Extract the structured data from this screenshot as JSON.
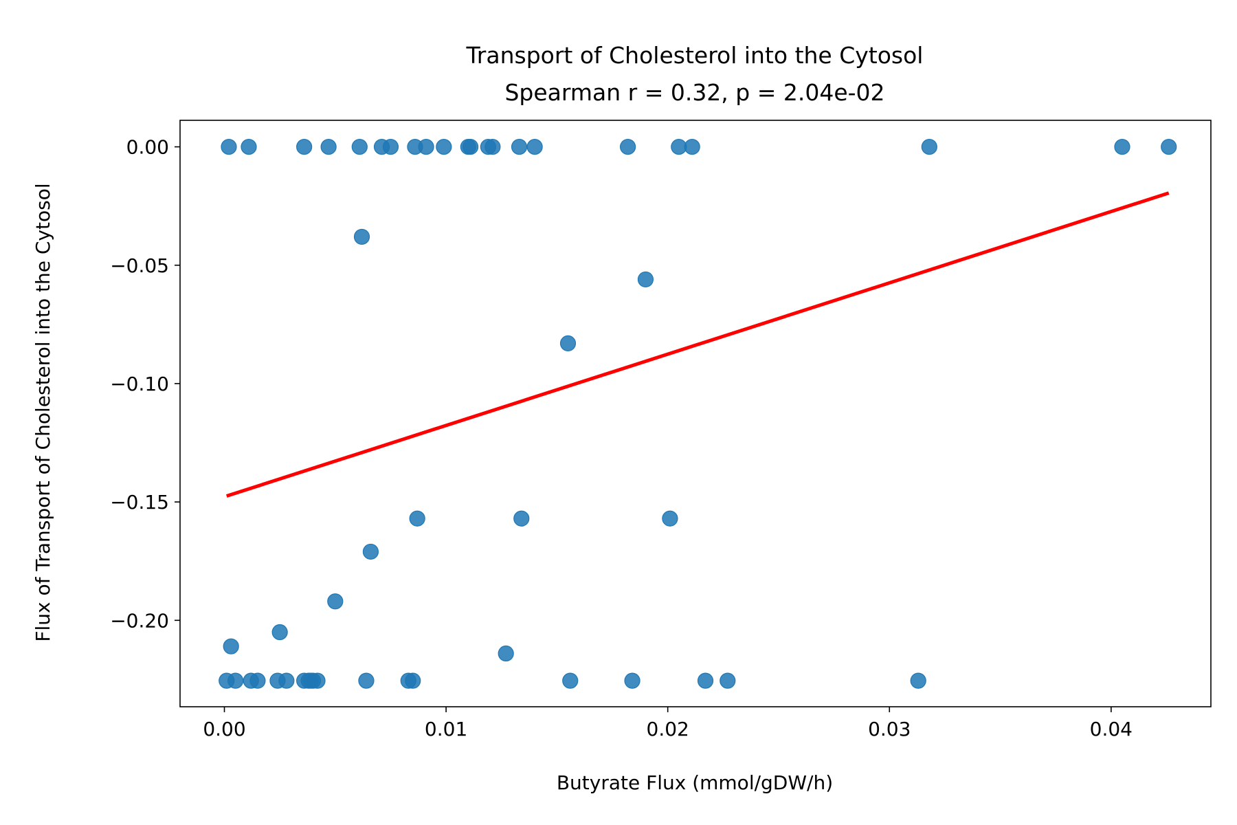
{
  "chart_data": {
    "type": "scatter",
    "title": "Transport of Cholesterol into the Cytosol",
    "subtitle": "Spearman r = 0.32, p = 2.04e-02",
    "xlabel": "Butyrate Flux (mmol/gDW/h)",
    "ylabel": "Flux of Transport of Cholesterol into the Cytosol",
    "xlim": [
      -0.002,
      0.0445
    ],
    "ylim": [
      -0.2365,
      0.0112
    ],
    "xticks": [
      0.0,
      0.01,
      0.02,
      0.03,
      0.04
    ],
    "xtick_labels": [
      "0.00",
      "0.01",
      "0.02",
      "0.03",
      "0.04"
    ],
    "yticks": [
      0.0,
      -0.05,
      -0.1,
      -0.15,
      -0.2
    ],
    "ytick_labels": [
      "0.00",
      "−0.05",
      "−0.10",
      "−0.15",
      "−0.20"
    ],
    "grid": false,
    "point_color": "#1f77b4",
    "line_color": "#ff0000",
    "points": [
      {
        "x": 0.0002,
        "y": 0.0
      },
      {
        "x": 0.0011,
        "y": 0.0
      },
      {
        "x": 0.0036,
        "y": 0.0
      },
      {
        "x": 0.0047,
        "y": 0.0
      },
      {
        "x": 0.0061,
        "y": 0.0
      },
      {
        "x": 0.0071,
        "y": 0.0
      },
      {
        "x": 0.0075,
        "y": 0.0
      },
      {
        "x": 0.0086,
        "y": 0.0
      },
      {
        "x": 0.0091,
        "y": 0.0
      },
      {
        "x": 0.0099,
        "y": 0.0
      },
      {
        "x": 0.011,
        "y": 0.0
      },
      {
        "x": 0.0111,
        "y": 0.0
      },
      {
        "x": 0.0119,
        "y": 0.0
      },
      {
        "x": 0.0121,
        "y": 0.0
      },
      {
        "x": 0.0133,
        "y": 0.0
      },
      {
        "x": 0.014,
        "y": 0.0
      },
      {
        "x": 0.0182,
        "y": 0.0
      },
      {
        "x": 0.0205,
        "y": 0.0
      },
      {
        "x": 0.0211,
        "y": 0.0
      },
      {
        "x": 0.0318,
        "y": 0.0
      },
      {
        "x": 0.0405,
        "y": 0.0
      },
      {
        "x": 0.0426,
        "y": 0.0
      },
      {
        "x": 0.0062,
        "y": -0.038
      },
      {
        "x": 0.019,
        "y": -0.056
      },
      {
        "x": 0.0155,
        "y": -0.083
      },
      {
        "x": 0.0087,
        "y": -0.157
      },
      {
        "x": 0.0134,
        "y": -0.157
      },
      {
        "x": 0.0201,
        "y": -0.157
      },
      {
        "x": 0.0066,
        "y": -0.171
      },
      {
        "x": 0.005,
        "y": -0.192
      },
      {
        "x": 0.0025,
        "y": -0.205
      },
      {
        "x": 0.0003,
        "y": -0.211
      },
      {
        "x": 0.0127,
        "y": -0.214
      },
      {
        "x": 0.0001,
        "y": -0.2255
      },
      {
        "x": 0.0005,
        "y": -0.2255
      },
      {
        "x": 0.0012,
        "y": -0.2255
      },
      {
        "x": 0.0015,
        "y": -0.2255
      },
      {
        "x": 0.0024,
        "y": -0.2255
      },
      {
        "x": 0.0028,
        "y": -0.2255
      },
      {
        "x": 0.0036,
        "y": -0.2255
      },
      {
        "x": 0.0038,
        "y": -0.2255
      },
      {
        "x": 0.0039,
        "y": -0.2255
      },
      {
        "x": 0.004,
        "y": -0.2255
      },
      {
        "x": 0.0042,
        "y": -0.2255
      },
      {
        "x": 0.0064,
        "y": -0.2255
      },
      {
        "x": 0.0083,
        "y": -0.2255
      },
      {
        "x": 0.0085,
        "y": -0.2255
      },
      {
        "x": 0.0156,
        "y": -0.2255
      },
      {
        "x": 0.0184,
        "y": -0.2255
      },
      {
        "x": 0.0217,
        "y": -0.2255
      },
      {
        "x": 0.0227,
        "y": -0.2255
      },
      {
        "x": 0.0313,
        "y": -0.2255
      }
    ],
    "fit_line": {
      "x": [
        0.0001,
        0.0426
      ],
      "y": [
        -0.1475,
        -0.0195
      ]
    }
  }
}
